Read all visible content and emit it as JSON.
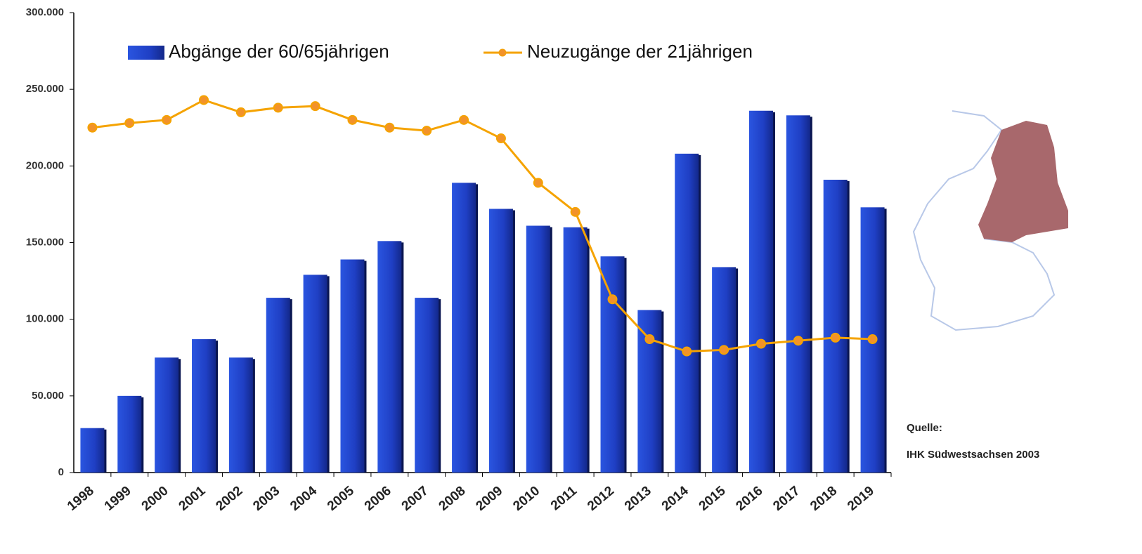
{
  "chart_data": {
    "type": "bar-line",
    "categories": [
      "1998",
      "1999",
      "2000",
      "2001",
      "2002",
      "2003",
      "2004",
      "2005",
      "2006",
      "2007",
      "2008",
      "2009",
      "2010",
      "2011",
      "2012",
      "2013",
      "2014",
      "2015",
      "2016",
      "2017",
      "2018",
      "2019"
    ],
    "series": [
      {
        "name": "Abgänge der 60/65jährigen",
        "type": "bar",
        "color": "#1f3fc4",
        "values": [
          29000,
          50000,
          75000,
          87000,
          75000,
          114000,
          129000,
          139000,
          151000,
          114000,
          189000,
          172000,
          161000,
          160000,
          141000,
          106000,
          208000,
          134000,
          236000,
          233000,
          191000,
          173000
        ]
      },
      {
        "name": "Neuzugänge der 21jährigen",
        "type": "line",
        "color": "#f5a300",
        "values": [
          225000,
          228000,
          230000,
          243000,
          235000,
          238000,
          239000,
          230000,
          225000,
          223000,
          230000,
          218000,
          189000,
          170000,
          113000,
          87000,
          79000,
          80000,
          84000,
          86000,
          88000,
          87000
        ]
      }
    ],
    "ylim": [
      0,
      300000
    ],
    "yticks": [
      0,
      {
        "value": 50000,
        "label": "50.000"
      },
      {
        "value": 100000,
        "label": "100.000"
      },
      {
        "value": 150000,
        "label": "150.000"
      },
      {
        "value": 200000,
        "label": "200.000"
      },
      {
        "value": 250000,
        "label": "250.000"
      },
      {
        "value": 300000,
        "label": "300.000"
      }
    ],
    "grid": false,
    "source": [
      "Quelle:",
      "IHK Südwestsachsen 2003"
    ]
  }
}
